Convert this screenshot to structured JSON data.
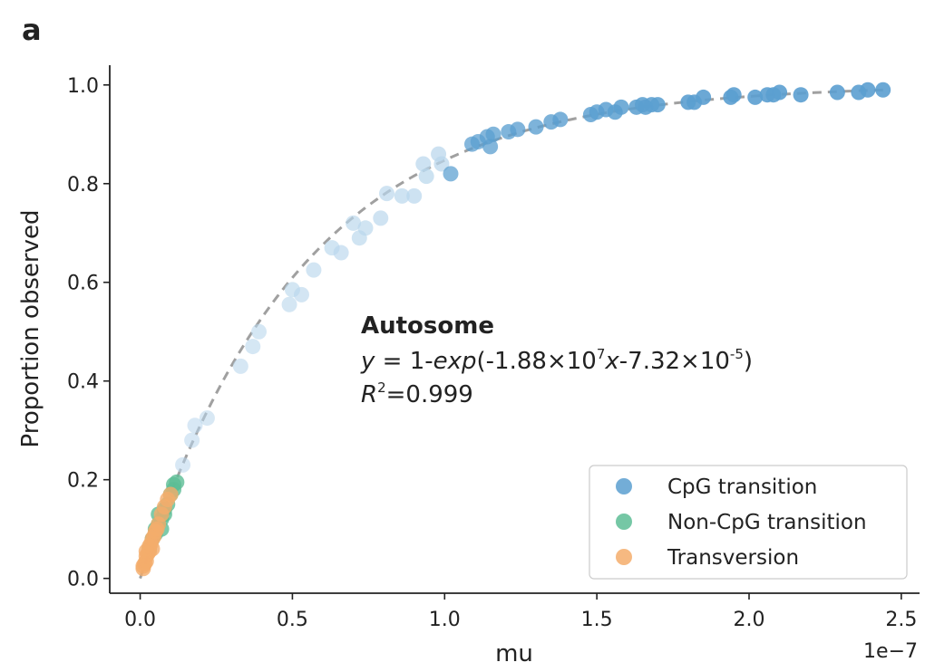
{
  "panel_label": "a",
  "annotation": {
    "title": "Autosome",
    "eq_prefix": "y",
    "eq_equals": " = 1-",
    "eq_exp": "exp",
    "eq_part1": "(-1.88×10",
    "eq_sup1": "7",
    "eq_x": "x",
    "eq_part2": "-7.32×10",
    "eq_sup2": "-5",
    "eq_close": ")",
    "r_label": "R",
    "r_sup": "2",
    "r_value": "=0.999"
  },
  "chart_data": {
    "type": "scatter",
    "xlabel": "mu",
    "ylabel": "Proportion observed",
    "x_offset_label": "1e−7",
    "x_ticks": [
      "0.0",
      "0.5",
      "1.0",
      "1.5",
      "2.0",
      "2.5"
    ],
    "y_ticks": [
      "0.0",
      "0.2",
      "0.4",
      "0.6",
      "0.8",
      "1.0"
    ],
    "xlim": [
      -0.1,
      2.56
    ],
    "ylim": [
      -0.03,
      1.04
    ],
    "grid": false,
    "legend_position": "bottom-right",
    "fit": {
      "label": "y = 1-exp(-1.88×10^7 x - 7.32×10^-5)",
      "a": 1.88,
      "b": 7.32e-05,
      "style": "dashed",
      "color": "#a0a0a0"
    },
    "series": [
      {
        "name": "CpG transition",
        "color": "#5b9fd0",
        "light_color": "#b8d6ec",
        "points": [
          [
            0.14,
            0.23
          ],
          [
            0.17,
            0.28
          ],
          [
            0.18,
            0.31
          ],
          [
            0.22,
            0.325
          ],
          [
            0.33,
            0.43
          ],
          [
            0.37,
            0.47
          ],
          [
            0.39,
            0.5
          ],
          [
            0.49,
            0.555
          ],
          [
            0.5,
            0.585
          ],
          [
            0.53,
            0.575
          ],
          [
            0.57,
            0.625
          ],
          [
            0.63,
            0.67
          ],
          [
            0.66,
            0.66
          ],
          [
            0.7,
            0.72
          ],
          [
            0.72,
            0.69
          ],
          [
            0.74,
            0.71
          ],
          [
            0.79,
            0.73
          ],
          [
            0.81,
            0.78
          ],
          [
            0.86,
            0.775
          ],
          [
            0.9,
            0.775
          ],
          [
            0.93,
            0.84
          ],
          [
            0.94,
            0.815
          ],
          [
            0.98,
            0.86
          ],
          [
            0.99,
            0.84
          ],
          [
            1.02,
            0.82
          ],
          [
            1.09,
            0.88
          ],
          [
            1.11,
            0.885
          ],
          [
            1.14,
            0.895
          ],
          [
            1.15,
            0.875
          ],
          [
            1.16,
            0.9
          ],
          [
            1.21,
            0.905
          ],
          [
            1.24,
            0.91
          ],
          [
            1.3,
            0.915
          ],
          [
            1.35,
            0.925
          ],
          [
            1.38,
            0.93
          ],
          [
            1.48,
            0.94
          ],
          [
            1.5,
            0.945
          ],
          [
            1.53,
            0.95
          ],
          [
            1.56,
            0.945
          ],
          [
            1.58,
            0.955
          ],
          [
            1.63,
            0.955
          ],
          [
            1.65,
            0.96
          ],
          [
            1.66,
            0.955
          ],
          [
            1.68,
            0.96
          ],
          [
            1.7,
            0.96
          ],
          [
            1.8,
            0.965
          ],
          [
            1.82,
            0.965
          ],
          [
            1.85,
            0.975
          ],
          [
            1.94,
            0.975
          ],
          [
            1.95,
            0.98
          ],
          [
            2.02,
            0.975
          ],
          [
            2.06,
            0.98
          ],
          [
            2.08,
            0.98
          ],
          [
            2.1,
            0.985
          ],
          [
            2.17,
            0.98
          ],
          [
            2.29,
            0.985
          ],
          [
            2.36,
            0.985
          ],
          [
            2.39,
            0.99
          ],
          [
            2.44,
            0.99
          ]
        ]
      },
      {
        "name": "Non-CpG transition",
        "color": "#5dbd95",
        "points": [
          [
            0.03,
            0.06
          ],
          [
            0.04,
            0.08
          ],
          [
            0.05,
            0.1
          ],
          [
            0.06,
            0.11
          ],
          [
            0.06,
            0.13
          ],
          [
            0.07,
            0.12
          ],
          [
            0.08,
            0.14
          ],
          [
            0.08,
            0.13
          ],
          [
            0.09,
            0.15
          ],
          [
            0.1,
            0.17
          ],
          [
            0.11,
            0.18
          ],
          [
            0.11,
            0.19
          ],
          [
            0.12,
            0.195
          ],
          [
            0.05,
            0.09
          ],
          [
            0.07,
            0.1
          ]
        ]
      },
      {
        "name": "Transversion",
        "color": "#f4ad6b",
        "points": [
          [
            0.01,
            0.02
          ],
          [
            0.01,
            0.025
          ],
          [
            0.015,
            0.03
          ],
          [
            0.02,
            0.035
          ],
          [
            0.02,
            0.045
          ],
          [
            0.025,
            0.05
          ],
          [
            0.03,
            0.055
          ],
          [
            0.03,
            0.065
          ],
          [
            0.035,
            0.07
          ],
          [
            0.04,
            0.08
          ],
          [
            0.045,
            0.085
          ],
          [
            0.05,
            0.095
          ],
          [
            0.06,
            0.11
          ],
          [
            0.07,
            0.13
          ],
          [
            0.08,
            0.145
          ],
          [
            0.09,
            0.16
          ],
          [
            0.1,
            0.17
          ],
          [
            0.02,
            0.055
          ],
          [
            0.04,
            0.06
          ],
          [
            0.055,
            0.1
          ]
        ]
      }
    ]
  }
}
